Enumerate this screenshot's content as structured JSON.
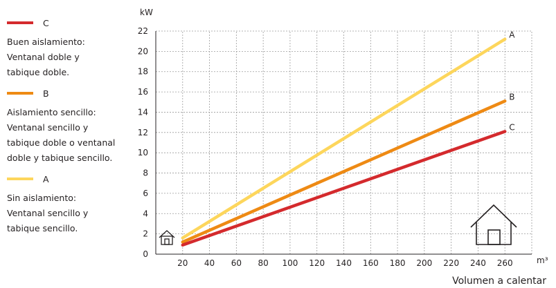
{
  "legend": [
    {
      "key": "C",
      "color": "#d42a2d",
      "lines": [
        "Buen aislamiento:",
        "Ventanal doble y",
        "tabique doble."
      ]
    },
    {
      "key": "B",
      "color": "#ee8a14",
      "lines": [
        "Aislamiento sencillo:",
        "Ventanal sencillo y",
        "tabique doble o ventanal",
        "doble y tabique sencillo."
      ]
    },
    {
      "key": "A",
      "color": "#fdd65c",
      "lines": [
        "Sin aislamiento:",
        "Ventanal sencillo y",
        "tabique sencillo."
      ]
    }
  ],
  "chart_data": {
    "type": "line",
    "ylabel": "kW",
    "xunit": "m³",
    "xlabel": "Volumen a calentar",
    "x_ticks": [
      20,
      40,
      60,
      80,
      100,
      120,
      140,
      160,
      180,
      200,
      220,
      240,
      260
    ],
    "y_ticks": [
      0,
      2,
      4,
      6,
      8,
      10,
      12,
      14,
      16,
      18,
      20,
      22
    ],
    "xlim": [
      0,
      280
    ],
    "ylim": [
      0,
      22
    ],
    "grid": true,
    "series": [
      {
        "name": "A",
        "color": "#fdd65c",
        "x": [
          20,
          260
        ],
        "y": [
          1.6,
          21.2
        ]
      },
      {
        "name": "B",
        "color": "#ee8a14",
        "x": [
          20,
          260
        ],
        "y": [
          1.2,
          15.1
        ]
      },
      {
        "name": "C",
        "color": "#d42a2d",
        "x": [
          20,
          260
        ],
        "y": [
          0.9,
          12.1
        ]
      }
    ]
  }
}
